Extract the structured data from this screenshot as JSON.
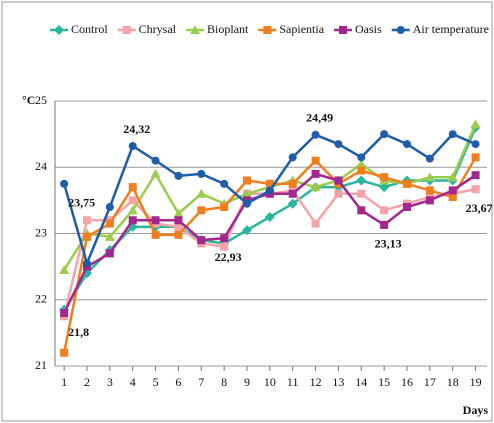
{
  "chart_data": {
    "type": "line",
    "y_label": "°C",
    "x_label": "Days",
    "x": [
      1,
      2,
      3,
      4,
      5,
      6,
      7,
      8,
      9,
      10,
      11,
      12,
      13,
      14,
      15,
      16,
      17,
      18,
      19
    ],
    "xlim": [
      0.6,
      19.5
    ],
    "xticks": [
      1,
      2,
      3,
      4,
      5,
      6,
      7,
      8,
      9,
      10,
      11,
      12,
      13,
      14,
      15,
      16,
      17,
      18,
      19
    ],
    "ylim": [
      21,
      25
    ],
    "yticks": [
      21,
      22,
      23,
      24,
      25
    ],
    "grid": true,
    "legend": "top",
    "series": [
      {
        "name": "Control",
        "color": "#2bb59c",
        "marker": "diamond",
        "values": [
          21.85,
          22.4,
          22.75,
          23.1,
          23.1,
          23.1,
          22.9,
          22.85,
          23.05,
          23.25,
          23.45,
          23.7,
          23.7,
          23.8,
          23.7,
          23.8,
          23.8,
          23.8,
          24.6
        ]
      },
      {
        "name": "Chrysal",
        "color": "#f4a3a8",
        "marker": "square",
        "values": [
          21.75,
          23.2,
          23.2,
          23.5,
          23.15,
          23.1,
          22.85,
          22.8,
          23.6,
          23.6,
          23.65,
          23.15,
          23.6,
          23.6,
          23.35,
          23.45,
          23.55,
          23.6,
          23.67
        ],
        "value_labels": [
          null,
          null,
          null,
          null,
          null,
          null,
          null,
          null,
          null,
          null,
          null,
          null,
          null,
          null,
          null,
          null,
          null,
          null,
          "23,67"
        ]
      },
      {
        "name": "Bioplant",
        "color": "#9bcc4e",
        "marker": "triangle",
        "values": [
          22.45,
          23.0,
          22.95,
          23.35,
          23.9,
          23.3,
          23.6,
          23.45,
          23.6,
          23.7,
          23.8,
          23.7,
          23.8,
          24.05,
          23.8,
          23.75,
          23.85,
          23.85,
          24.65
        ]
      },
      {
        "name": "Sapientia",
        "color": "#f07d1e",
        "marker": "square",
        "values": [
          21.2,
          22.95,
          23.15,
          23.7,
          22.98,
          22.98,
          23.35,
          23.4,
          23.8,
          23.75,
          23.75,
          24.1,
          23.75,
          23.95,
          23.85,
          23.75,
          23.65,
          23.55,
          24.15
        ]
      },
      {
        "name": "Oasis",
        "color": "#a2278e",
        "marker": "square",
        "values": [
          21.8,
          22.5,
          22.7,
          23.2,
          23.2,
          23.2,
          22.9,
          22.93,
          23.5,
          23.6,
          23.6,
          23.9,
          23.8,
          23.35,
          23.13,
          23.4,
          23.5,
          23.65,
          23.88
        ],
        "value_labels": [
          "21,8",
          null,
          null,
          null,
          null,
          null,
          null,
          "22,93",
          null,
          null,
          null,
          null,
          null,
          null,
          "23,13",
          null,
          null,
          null,
          null
        ]
      },
      {
        "name": "Air temperature",
        "color": "#1f5dab",
        "marker": "circle",
        "values": [
          23.75,
          22.55,
          23.4,
          24.32,
          24.1,
          23.87,
          23.9,
          23.75,
          23.45,
          23.65,
          24.15,
          24.49,
          24.35,
          24.15,
          24.5,
          24.35,
          24.13,
          24.5,
          24.35
        ],
        "value_labels": [
          "23,75",
          null,
          null,
          "24,32",
          null,
          null,
          null,
          null,
          null,
          null,
          null,
          "24,49",
          null,
          null,
          null,
          null,
          null,
          null,
          null
        ]
      }
    ]
  }
}
